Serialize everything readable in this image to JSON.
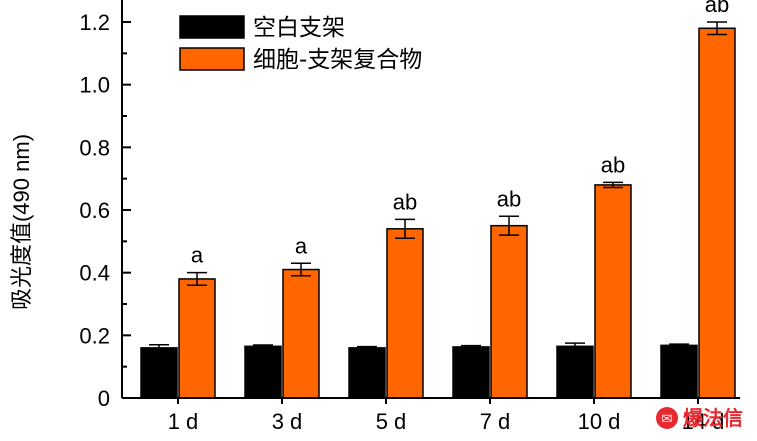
{
  "chart_data": {
    "type": "bar",
    "ylabel": "吸光度值(490 nm)",
    "ylim": [
      0,
      1.25
    ],
    "yticks": [
      "0",
      "0.2",
      "0.4",
      "0.6",
      "0.8",
      "1.0",
      "1.2"
    ],
    "categories": [
      "1 d",
      "3 d",
      "5 d",
      "7 d",
      "10 d",
      "14 d"
    ],
    "legend_position": "top-left",
    "series": [
      {
        "name": "空白支架",
        "color": "#000000",
        "values": [
          0.16,
          0.165,
          0.16,
          0.163,
          0.165,
          0.168
        ],
        "errors": [
          0.01,
          0.004,
          0.004,
          0.004,
          0.01,
          0.004
        ],
        "labels": [
          "",
          "",
          "",
          "",
          "",
          ""
        ]
      },
      {
        "name": "细胞-支架复合物",
        "color": "#ff6600",
        "values": [
          0.38,
          0.41,
          0.54,
          0.55,
          0.68,
          1.18
        ],
        "errors": [
          0.02,
          0.02,
          0.03,
          0.03,
          0.008,
          0.02
        ],
        "labels": [
          "a",
          "a",
          "ab",
          "ab",
          "ab",
          "ab"
        ]
      }
    ]
  },
  "watermark": "爆法信"
}
